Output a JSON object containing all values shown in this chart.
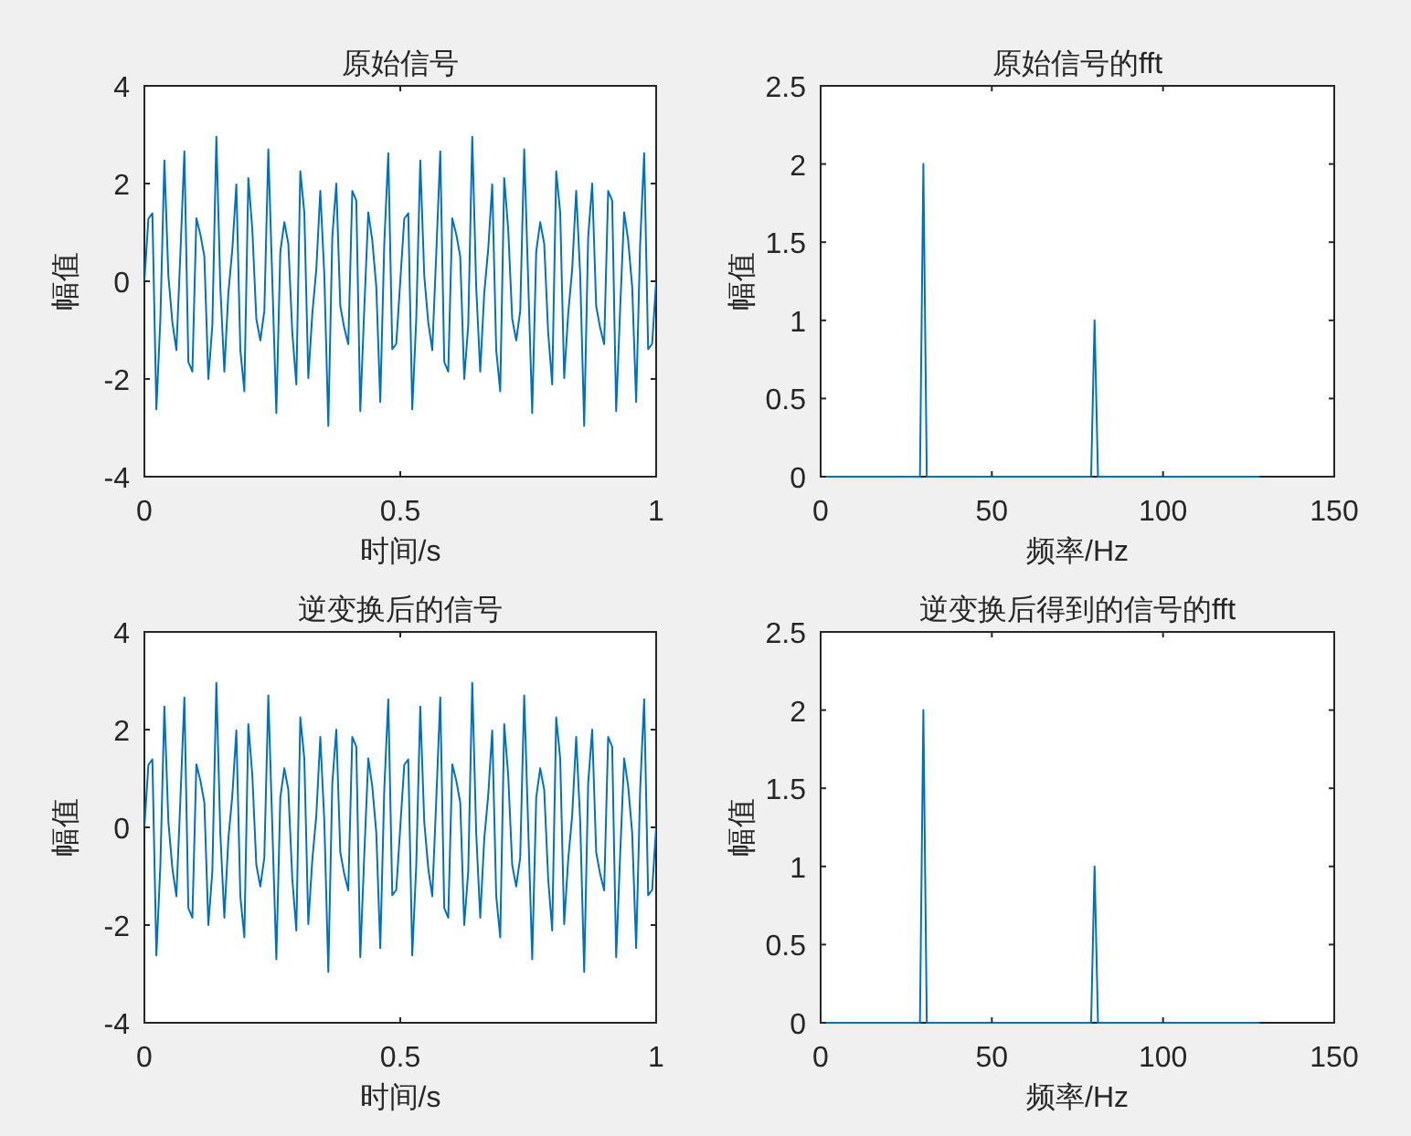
{
  "chart_data": [
    {
      "type": "line",
      "title": "原始信号",
      "xlabel": "时间/s",
      "ylabel": "幅值",
      "xlim": [
        0,
        1
      ],
      "xticks": [
        0,
        0.5,
        1
      ],
      "ylim": [
        -4,
        4
      ],
      "yticks": [
        -4,
        -2,
        0,
        2,
        4
      ],
      "grid": false,
      "series": [
        {
          "color": "#0072bd",
          "x": [
            0,
            0.0078125,
            0.015625,
            0.0234375,
            0.03125,
            0.0390625,
            0.046875,
            0.0546875,
            0.0625,
            0.0703125,
            0.078125,
            0.0859375,
            0.09375,
            0.1015625,
            0.109375,
            0.1171875,
            0.125,
            0.1328125,
            0.140625,
            0.1484375,
            0.15625,
            0.1640625,
            0.171875,
            0.1796875,
            0.1875,
            0.1953125,
            0.203125,
            0.2109375,
            0.21875,
            0.2265625,
            0.234375,
            0.2421875,
            0.25,
            0.2578125,
            0.265625,
            0.2734375,
            0.28125,
            0.2890625,
            0.296875,
            0.3046875,
            0.3125,
            0.3203125,
            0.328125,
            0.3359375,
            0.34375,
            0.3515625,
            0.359375,
            0.3671875,
            0.375,
            0.3828125,
            0.390625,
            0.3984375,
            0.40625,
            0.4140625,
            0.421875,
            0.4296875,
            0.4375,
            0.4453125,
            0.453125,
            0.4609375,
            0.46875,
            0.4765625,
            0.484375,
            0.4921875,
            0.5,
            0.5078125,
            0.515625,
            0.5234375,
            0.53125,
            0.5390625,
            0.546875,
            0.5546875,
            0.5625,
            0.5703125,
            0.578125,
            0.5859375,
            0.59375,
            0.6015625,
            0.609375,
            0.6171875,
            0.625,
            0.6328125,
            0.640625,
            0.6484375,
            0.65625,
            0.6640625,
            0.671875,
            0.6796875,
            0.6875,
            0.6953125,
            0.703125,
            0.7109375,
            0.71875,
            0.7265625,
            0.734375,
            0.7421875,
            0.75,
            0.7578125,
            0.765625,
            0.7734375,
            0.78125,
            0.7890625,
            0.796875,
            0.8046875,
            0.8125,
            0.8203125,
            0.828125,
            0.8359375,
            0.84375,
            0.8515625,
            0.859375,
            0.8671875,
            0.875,
            0.8828125,
            0.890625,
            0.8984375,
            0.90625,
            0.9140625,
            0.921875,
            0.9296875,
            0.9375,
            0.9453125,
            0.953125,
            0.9609375,
            0.96875,
            0.9765625,
            0.984375,
            0.9921875,
            1
          ],
          "values": [
            0,
            1.28,
            1.39,
            -2.62,
            -0.77,
            2.47,
            0.11,
            -0.84,
            -1.41,
            0.56,
            2.66,
            -1.65,
            -1.85,
            1.29,
            0.96,
            0.51,
            -2,
            -0.9,
            2.96,
            -0.13,
            -1.85,
            -0.24,
            0.66,
            1.98,
            -1.41,
            -2.25,
            2.11,
            1.06,
            -0.77,
            -1.21,
            -0.61,
            2.7,
            0,
            -2.7,
            0.61,
            1.21,
            0.77,
            -1.06,
            -2.11,
            2.25,
            1.41,
            -1.98,
            -0.66,
            0.24,
            1.85,
            0.13,
            -2.96,
            0.9,
            2,
            -0.51,
            -0.96,
            -1.29,
            1.85,
            1.65,
            -2.66,
            -0.56,
            1.41,
            0.84,
            -0.11,
            -2.47,
            0.77,
            2.62,
            -1.39,
            -1.28,
            0,
            1.28,
            1.39,
            -2.62,
            -0.77,
            2.47,
            0.11,
            -0.84,
            -1.41,
            0.56,
            2.66,
            -1.65,
            -1.85,
            1.29,
            0.96,
            0.51,
            -2,
            -0.9,
            2.96,
            -0.13,
            -1.85,
            -0.24,
            0.66,
            1.98,
            -1.41,
            -2.25,
            2.11,
            1.06,
            -0.77,
            -1.21,
            -0.61,
            2.7,
            0,
            -2.7,
            0.61,
            1.21,
            0.77,
            -1.06,
            -2.11,
            2.25,
            1.41,
            -1.98,
            -0.66,
            0.24,
            1.85,
            0.13,
            -2.96,
            0.9,
            2,
            -0.51,
            -0.96,
            -1.29,
            1.85,
            1.65,
            -2.66,
            -0.56,
            1.41,
            0.84,
            -0.11,
            -2.47,
            0.77,
            2.62,
            -1.39,
            -1.28,
            0
          ]
        }
      ]
    },
    {
      "type": "line",
      "title": "原始信号的fft",
      "xlabel": "频率/Hz",
      "ylabel": "幅值",
      "xlim": [
        0,
        150
      ],
      "xticks": [
        0,
        50,
        100,
        150
      ],
      "ylim": [
        0,
        2.5
      ],
      "yticks": [
        0,
        0.5,
        1,
        1.5,
        2,
        2.5
      ],
      "grid": false,
      "series": [
        {
          "color": "#0072bd",
          "x": [
            0,
            29,
            30,
            31,
            79,
            80,
            81,
            128
          ],
          "values": [
            0,
            0,
            2,
            0,
            0,
            1,
            0,
            0
          ]
        }
      ]
    },
    {
      "type": "line",
      "title": "逆变换后的信号",
      "xlabel": "时间/s",
      "ylabel": "幅值",
      "xlim": [
        0,
        1
      ],
      "xticks": [
        0,
        0.5,
        1
      ],
      "ylim": [
        -4,
        4
      ],
      "yticks": [
        -4,
        -2,
        0,
        2,
        4
      ],
      "grid": false,
      "series": [
        {
          "color": "#0072bd",
          "x": [
            0,
            0.0078125,
            0.015625,
            0.0234375,
            0.03125,
            0.0390625,
            0.046875,
            0.0546875,
            0.0625,
            0.0703125,
            0.078125,
            0.0859375,
            0.09375,
            0.1015625,
            0.109375,
            0.1171875,
            0.125,
            0.1328125,
            0.140625,
            0.1484375,
            0.15625,
            0.1640625,
            0.171875,
            0.1796875,
            0.1875,
            0.1953125,
            0.203125,
            0.2109375,
            0.21875,
            0.2265625,
            0.234375,
            0.2421875,
            0.25,
            0.2578125,
            0.265625,
            0.2734375,
            0.28125,
            0.2890625,
            0.296875,
            0.3046875,
            0.3125,
            0.3203125,
            0.328125,
            0.3359375,
            0.34375,
            0.3515625,
            0.359375,
            0.3671875,
            0.375,
            0.3828125,
            0.390625,
            0.3984375,
            0.40625,
            0.4140625,
            0.421875,
            0.4296875,
            0.4375,
            0.4453125,
            0.453125,
            0.4609375,
            0.46875,
            0.4765625,
            0.484375,
            0.4921875,
            0.5,
            0.5078125,
            0.515625,
            0.5234375,
            0.53125,
            0.5390625,
            0.546875,
            0.5546875,
            0.5625,
            0.5703125,
            0.578125,
            0.5859375,
            0.59375,
            0.6015625,
            0.609375,
            0.6171875,
            0.625,
            0.6328125,
            0.640625,
            0.6484375,
            0.65625,
            0.6640625,
            0.671875,
            0.6796875,
            0.6875,
            0.6953125,
            0.703125,
            0.7109375,
            0.71875,
            0.7265625,
            0.734375,
            0.7421875,
            0.75,
            0.7578125,
            0.765625,
            0.7734375,
            0.78125,
            0.7890625,
            0.796875,
            0.8046875,
            0.8125,
            0.8203125,
            0.828125,
            0.8359375,
            0.84375,
            0.8515625,
            0.859375,
            0.8671875,
            0.875,
            0.8828125,
            0.890625,
            0.8984375,
            0.90625,
            0.9140625,
            0.921875,
            0.9296875,
            0.9375,
            0.9453125,
            0.953125,
            0.9609375,
            0.96875,
            0.9765625,
            0.984375,
            0.9921875,
            1
          ],
          "values": [
            0,
            1.28,
            1.39,
            -2.62,
            -0.77,
            2.47,
            0.11,
            -0.84,
            -1.41,
            0.56,
            2.66,
            -1.65,
            -1.85,
            1.29,
            0.96,
            0.51,
            -2,
            -0.9,
            2.96,
            -0.13,
            -1.85,
            -0.24,
            0.66,
            1.98,
            -1.41,
            -2.25,
            2.11,
            1.06,
            -0.77,
            -1.21,
            -0.61,
            2.7,
            0,
            -2.7,
            0.61,
            1.21,
            0.77,
            -1.06,
            -2.11,
            2.25,
            1.41,
            -1.98,
            -0.66,
            0.24,
            1.85,
            0.13,
            -2.96,
            0.9,
            2,
            -0.51,
            -0.96,
            -1.29,
            1.85,
            1.65,
            -2.66,
            -0.56,
            1.41,
            0.84,
            -0.11,
            -2.47,
            0.77,
            2.62,
            -1.39,
            -1.28,
            0,
            1.28,
            1.39,
            -2.62,
            -0.77,
            2.47,
            0.11,
            -0.84,
            -1.41,
            0.56,
            2.66,
            -1.65,
            -1.85,
            1.29,
            0.96,
            0.51,
            -2,
            -0.9,
            2.96,
            -0.13,
            -1.85,
            -0.24,
            0.66,
            1.98,
            -1.41,
            -2.25,
            2.11,
            1.06,
            -0.77,
            -1.21,
            -0.61,
            2.7,
            0,
            -2.7,
            0.61,
            1.21,
            0.77,
            -1.06,
            -2.11,
            2.25,
            1.41,
            -1.98,
            -0.66,
            0.24,
            1.85,
            0.13,
            -2.96,
            0.9,
            2,
            -0.51,
            -0.96,
            -1.29,
            1.85,
            1.65,
            -2.66,
            -0.56,
            1.41,
            0.84,
            -0.11,
            -2.47,
            0.77,
            2.62,
            -1.39,
            -1.28,
            0
          ]
        }
      ]
    },
    {
      "type": "line",
      "title": "逆变换后得到的信号的fft",
      "xlabel": "频率/Hz",
      "ylabel": "幅值",
      "xlim": [
        0,
        150
      ],
      "xticks": [
        0,
        50,
        100,
        150
      ],
      "ylim": [
        0,
        2.5
      ],
      "yticks": [
        0,
        0.5,
        1,
        1.5,
        2,
        2.5
      ],
      "grid": false,
      "series": [
        {
          "color": "#0072bd",
          "x": [
            0,
            29,
            30,
            31,
            79,
            80,
            81,
            128
          ],
          "values": [
            0,
            0,
            2,
            0,
            0,
            1,
            0,
            0
          ]
        }
      ]
    }
  ]
}
